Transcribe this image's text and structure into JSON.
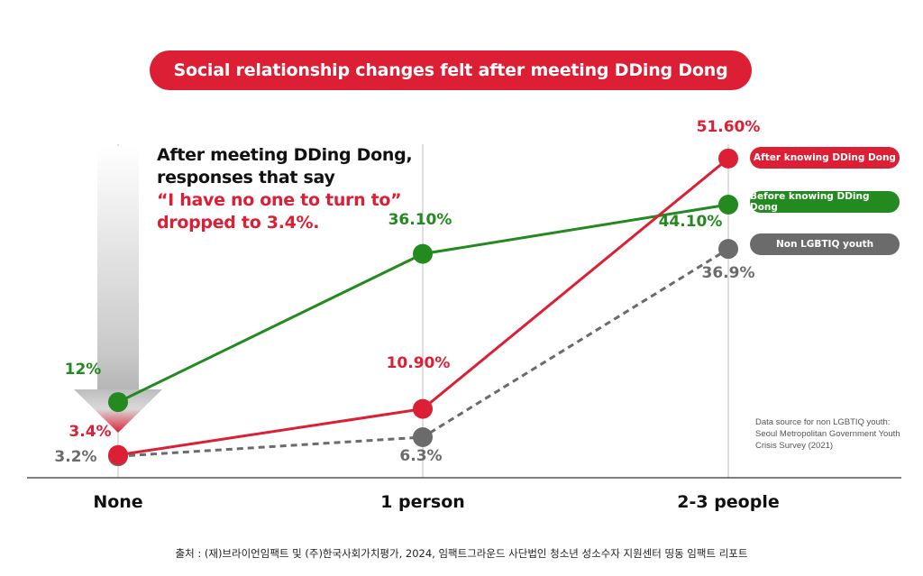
{
  "title": "Social relationship changes felt after meeting DDing Dong",
  "annotation": {
    "line1": "After meeting DDing Dong,",
    "line2": "responses that say",
    "line3": "“I have no one to turn to”",
    "line4": "dropped to 3.4%."
  },
  "source_note": "Data source for non LGBTIQ youth: Seoul Metropolitan Government Youth Crisis Survey (2021)",
  "footer": "출처 : (재)브라이언임팩트 및 (주)한국사회가치평가, 2024, 임팩트그라운드 사단법인 청소년 성소수자 지원센터 띵동 임팩트 리포트",
  "colors": {
    "red": "#dc1f35",
    "green": "#238a1f",
    "gray": "#6b6b6b"
  },
  "chart_data": {
    "type": "line",
    "title": "Social relationship changes felt after meeting DDing Dong",
    "categories": [
      "None",
      "1 person",
      "2-3 people"
    ],
    "ylim": [
      0,
      55
    ],
    "grid": "vertical lines at categories",
    "legend_position": "right",
    "series": [
      {
        "name": "After knowing DDing Dong",
        "values": [
          3.4,
          10.9,
          51.6
        ],
        "labels": [
          "3.4%",
          "10.90%",
          "51.60%"
        ],
        "color": "#dc1f35",
        "style": "solid"
      },
      {
        "name": "Before knowing DDing Dong",
        "values": [
          12,
          36.1,
          44.1
        ],
        "labels": [
          "12%",
          "36.10%",
          "44.10%"
        ],
        "color": "#238a1f",
        "style": "solid"
      },
      {
        "name": "Non LGBTIQ youth",
        "values": [
          3.2,
          6.3,
          36.9
        ],
        "labels": [
          "3.2%",
          "6.3%",
          "36.9%"
        ],
        "color": "#6b6b6b",
        "style": "dashed"
      }
    ]
  }
}
